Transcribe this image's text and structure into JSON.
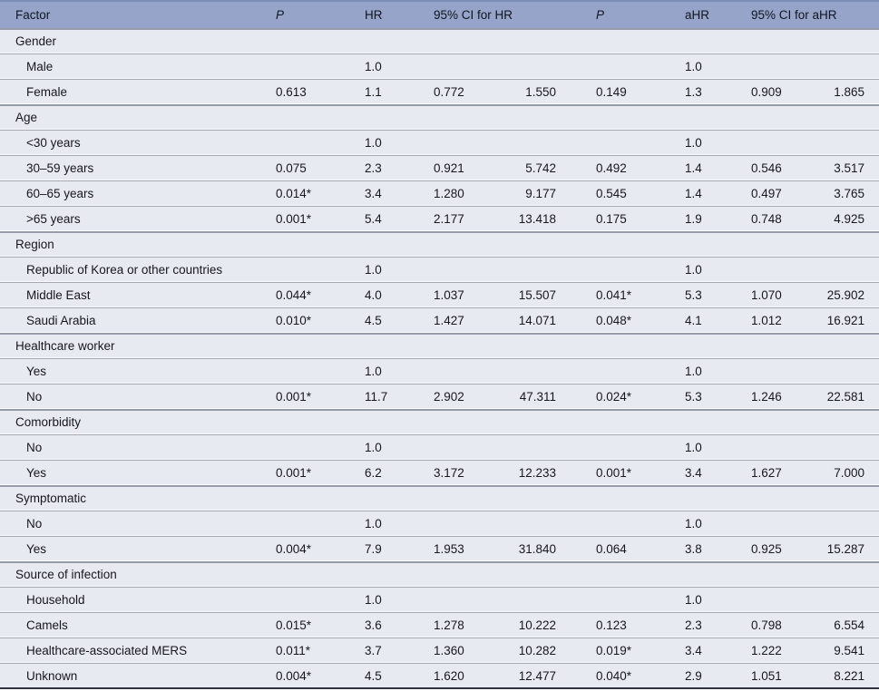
{
  "table": {
    "columns": {
      "factor": "Factor",
      "p": "P",
      "hr": "HR",
      "ci_hr": "95% CI for HR",
      "p_adj": "P",
      "ahr": "aHR",
      "ci_ahr": "95% CI for aHR"
    },
    "sections": [
      {
        "name": "Gender",
        "rows": [
          {
            "factor": "Male",
            "p": "",
            "hr": "1.0",
            "ci_low": "",
            "ci_high": "",
            "p2": "",
            "ahr": "1.0",
            "aci_low": "",
            "aci_high": ""
          },
          {
            "factor": "Female",
            "p": "0.613",
            "hr": "1.1",
            "ci_low": "0.772",
            "ci_high": "1.550",
            "p2": "0.149",
            "ahr": "1.3",
            "aci_low": "0.909",
            "aci_high": "1.865"
          }
        ]
      },
      {
        "name": "Age",
        "rows": [
          {
            "factor": "<30 years",
            "p": "",
            "hr": "1.0",
            "ci_low": "",
            "ci_high": "",
            "p2": "",
            "ahr": "1.0",
            "aci_low": "",
            "aci_high": ""
          },
          {
            "factor": "30–59 years",
            "p": "0.075",
            "hr": "2.3",
            "ci_low": "0.921",
            "ci_high": "5.742",
            "p2": "0.492",
            "ahr": "1.4",
            "aci_low": "0.546",
            "aci_high": "3.517"
          },
          {
            "factor": "60–65 years",
            "p": "0.014*",
            "hr": "3.4",
            "ci_low": "1.280",
            "ci_high": "9.177",
            "p2": "0.545",
            "ahr": "1.4",
            "aci_low": "0.497",
            "aci_high": "3.765"
          },
          {
            "factor": ">65 years",
            "p": "0.001*",
            "hr": "5.4",
            "ci_low": "2.177",
            "ci_high": "13.418",
            "p2": "0.175",
            "ahr": "1.9",
            "aci_low": "0.748",
            "aci_high": "4.925"
          }
        ]
      },
      {
        "name": "Region",
        "rows": [
          {
            "factor": "Republic of Korea or other countries",
            "p": "",
            "hr": "1.0",
            "ci_low": "",
            "ci_high": "",
            "p2": "",
            "ahr": "1.0",
            "aci_low": "",
            "aci_high": ""
          },
          {
            "factor": "Middle East",
            "p": "0.044*",
            "hr": "4.0",
            "ci_low": "1.037",
            "ci_high": "15.507",
            "p2": "0.041*",
            "ahr": "5.3",
            "aci_low": "1.070",
            "aci_high": "25.902"
          },
          {
            "factor": "Saudi Arabia",
            "p": "0.010*",
            "hr": "4.5",
            "ci_low": "1.427",
            "ci_high": "14.071",
            "p2": "0.048*",
            "ahr": "4.1",
            "aci_low": "1.012",
            "aci_high": "16.921"
          }
        ]
      },
      {
        "name": "Healthcare worker",
        "rows": [
          {
            "factor": "Yes",
            "p": "",
            "hr": "1.0",
            "ci_low": "",
            "ci_high": "",
            "p2": "",
            "ahr": "1.0",
            "aci_low": "",
            "aci_high": ""
          },
          {
            "factor": "No",
            "p": "0.001*",
            "hr": "11.7",
            "ci_low": "2.902",
            "ci_high": "47.311",
            "p2": "0.024*",
            "ahr": "5.3",
            "aci_low": "1.246",
            "aci_high": "22.581"
          }
        ]
      },
      {
        "name": "Comorbidity",
        "rows": [
          {
            "factor": "No",
            "p": "",
            "hr": "1.0",
            "ci_low": "",
            "ci_high": "",
            "p2": "",
            "ahr": "1.0",
            "aci_low": "",
            "aci_high": ""
          },
          {
            "factor": "Yes",
            "p": "0.001*",
            "hr": "6.2",
            "ci_low": "3.172",
            "ci_high": "12.233",
            "p2": "0.001*",
            "ahr": "3.4",
            "aci_low": "1.627",
            "aci_high": "7.000"
          }
        ]
      },
      {
        "name": "Symptomatic",
        "rows": [
          {
            "factor": "No",
            "p": "",
            "hr": "1.0",
            "ci_low": "",
            "ci_high": "",
            "p2": "",
            "ahr": "1.0",
            "aci_low": "",
            "aci_high": ""
          },
          {
            "factor": "Yes",
            "p": "0.004*",
            "hr": "7.9",
            "ci_low": "1.953",
            "ci_high": "31.840",
            "p2": "0.064",
            "ahr": "3.8",
            "aci_low": "0.925",
            "aci_high": "15.287"
          }
        ]
      },
      {
        "name": "Source of infection",
        "rows": [
          {
            "factor": "Household",
            "p": "",
            "hr": "1.0",
            "ci_low": "",
            "ci_high": "",
            "p2": "",
            "ahr": "1.0",
            "aci_low": "",
            "aci_high": ""
          },
          {
            "factor": "Camels",
            "p": "0.015*",
            "hr": "3.6",
            "ci_low": "1.278",
            "ci_high": "10.222",
            "p2": "0.123",
            "ahr": "2.3",
            "aci_low": "0.798",
            "aci_high": "6.554"
          },
          {
            "factor": "Healthcare-associated MERS",
            "p": "0.011*",
            "hr": "3.7",
            "ci_low": "1.360",
            "ci_high": "10.282",
            "p2": "0.019*",
            "ahr": "3.4",
            "aci_low": "1.222",
            "aci_high": "9.541"
          },
          {
            "factor": "Unknown",
            "p": "0.004*",
            "hr": "4.5",
            "ci_low": "1.620",
            "ci_high": "12.477",
            "p2": "0.040*",
            "ahr": "2.9",
            "aci_low": "1.051",
            "aci_high": "8.221"
          }
        ]
      }
    ]
  },
  "colors": {
    "header_bg": "#95a4c8",
    "header_top_line": "#7b8db4",
    "row_bg": "#e8eaf2",
    "separator_gray": "#a4a7b1",
    "separator_white": "#fbfcfe",
    "section_line": "#979caa",
    "bottom_border": "#2f323c",
    "text": "#17181d"
  }
}
